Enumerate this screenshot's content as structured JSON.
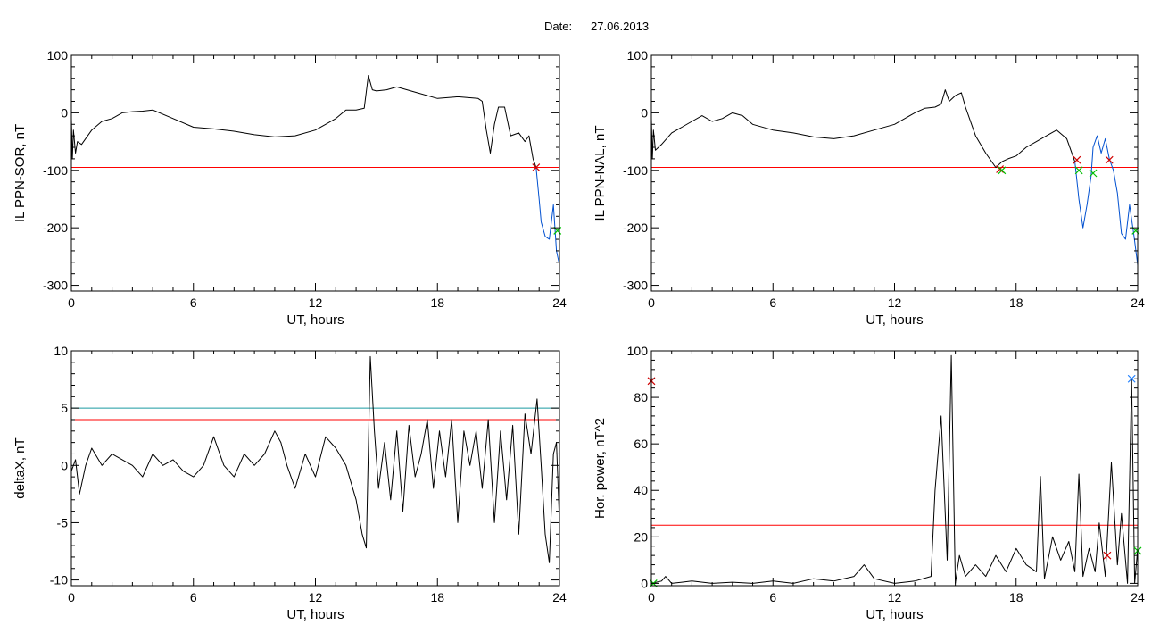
{
  "page": {
    "date_label": "Date:",
    "date_value": "27.06.2013"
  },
  "colors": {
    "data_line": "#000000",
    "threshold_red": "#ff0000",
    "threshold_cyan": "#1a9aa0",
    "below_threshold_blue": "#0050d0",
    "marker_red": "#d00000",
    "marker_green": "#00c000",
    "marker_blue": "#2080ff"
  },
  "chart_data": [
    {
      "id": "il-ppn-sor",
      "type": "line",
      "title": "",
      "xlabel": "UT, hours",
      "ylabel": "IL PPN-SOR, nT",
      "xlim": [
        0,
        24
      ],
      "ylim": [
        -310,
        100
      ],
      "xticks": [
        0,
        6,
        12,
        18,
        24
      ],
      "yticks": [
        100,
        0,
        -100,
        -200,
        -300
      ],
      "grid": false,
      "thresholds": [
        {
          "value": -95,
          "color": "red"
        }
      ],
      "series": [
        {
          "color": "black",
          "x": [
            0,
            0.05,
            0.1,
            0.2,
            0.3,
            0.5,
            1,
            1.5,
            2,
            2.5,
            3,
            3.5,
            4,
            5,
            6,
            7,
            8,
            9,
            10,
            11,
            12,
            12.5,
            13,
            13.5,
            14,
            14.4,
            14.6,
            14.8,
            15,
            15.5,
            16,
            17,
            18,
            19,
            20,
            20.2,
            20.4,
            20.6,
            20.8,
            21,
            21.3,
            21.6,
            22,
            22.3,
            22.5,
            22.7,
            22.85
          ],
          "y": [
            -10,
            -80,
            -30,
            -70,
            -50,
            -55,
            -30,
            -15,
            -10,
            0,
            2,
            3,
            5,
            -10,
            -25,
            -28,
            -32,
            -38,
            -42,
            -40,
            -30,
            -20,
            -10,
            5,
            5,
            8,
            65,
            40,
            38,
            40,
            45,
            35,
            25,
            28,
            25,
            20,
            -30,
            -70,
            -20,
            10,
            10,
            -40,
            -35,
            -50,
            -40,
            -80,
            -95
          ]
        },
        {
          "color": "blue",
          "x": [
            22.85,
            23,
            23.1,
            23.3,
            23.5,
            23.7,
            23.85,
            24
          ],
          "y": [
            -95,
            -150,
            -190,
            -215,
            -220,
            -160,
            -240,
            -265
          ]
        }
      ],
      "markers": [
        {
          "x": 22.85,
          "y": -95,
          "color": "red",
          "symbol": "x"
        },
        {
          "x": 23.9,
          "y": -205,
          "color": "green",
          "symbol": "x"
        }
      ]
    },
    {
      "id": "il-ppn-nal",
      "type": "line",
      "title": "",
      "xlabel": "UT, hours",
      "ylabel": "IL PPN-NAL, nT",
      "xlim": [
        0,
        24
      ],
      "ylim": [
        -310,
        100
      ],
      "xticks": [
        0,
        6,
        12,
        18,
        24
      ],
      "yticks": [
        100,
        0,
        -100,
        -200,
        -300
      ],
      "grid": false,
      "thresholds": [
        {
          "value": -95,
          "color": "red"
        }
      ],
      "series": [
        {
          "color": "black",
          "x": [
            0,
            0.05,
            0.1,
            0.2,
            0.5,
            1,
            1.5,
            2,
            2.5,
            3,
            3.5,
            4,
            4.5,
            5,
            6,
            7,
            8,
            9,
            10,
            11,
            12,
            13,
            13.5,
            14,
            14.3,
            14.5,
            14.7,
            15,
            15.3,
            15.5,
            15.8,
            16,
            16.5,
            17,
            17.3,
            17.6,
            18,
            18.5,
            19,
            19.5,
            20,
            20.5,
            20.9
          ],
          "y": [
            -10,
            -80,
            -30,
            -65,
            -55,
            -35,
            -25,
            -15,
            -5,
            -15,
            -10,
            0,
            -5,
            -20,
            -30,
            -35,
            -42,
            -45,
            -40,
            -30,
            -20,
            0,
            8,
            10,
            15,
            40,
            20,
            30,
            35,
            10,
            -20,
            -40,
            -70,
            -95,
            -85,
            -80,
            -75,
            -60,
            -50,
            -40,
            -30,
            -45,
            -85
          ]
        },
        {
          "color": "blue",
          "x": [
            20.9,
            21.1,
            21.3,
            21.5,
            21.7,
            21.8,
            22,
            22.2,
            22.4,
            22.6,
            22.8,
            23,
            23.2,
            23.4,
            23.6,
            23.8,
            24
          ],
          "y": [
            -85,
            -150,
            -200,
            -160,
            -110,
            -60,
            -40,
            -70,
            -45,
            -80,
            -100,
            -140,
            -210,
            -220,
            -160,
            -210,
            -265
          ]
        }
      ],
      "markers": [
        {
          "x": 17.2,
          "y": -98,
          "color": "red",
          "symbol": "x"
        },
        {
          "x": 17.3,
          "y": -100,
          "color": "green",
          "symbol": "x"
        },
        {
          "x": 21.0,
          "y": -82,
          "color": "red",
          "symbol": "x"
        },
        {
          "x": 21.1,
          "y": -100,
          "color": "green",
          "symbol": "x"
        },
        {
          "x": 21.8,
          "y": -105,
          "color": "green",
          "symbol": "x"
        },
        {
          "x": 22.6,
          "y": -82,
          "color": "red",
          "symbol": "x"
        },
        {
          "x": 23.9,
          "y": -205,
          "color": "green",
          "symbol": "x"
        }
      ]
    },
    {
      "id": "delta-x",
      "type": "line",
      "title": "",
      "xlabel": "UT, hours",
      "ylabel": "deltaX, nT",
      "xlim": [
        0,
        24
      ],
      "ylim": [
        -10.5,
        10
      ],
      "xticks": [
        0,
        6,
        12,
        18,
        24
      ],
      "yticks": [
        10,
        5,
        0,
        -5,
        -10
      ],
      "grid": false,
      "thresholds": [
        {
          "value": 5,
          "color": "cyan"
        },
        {
          "value": 4,
          "color": "red"
        }
      ],
      "series": [
        {
          "color": "black",
          "x": [
            0,
            0.2,
            0.4,
            0.7,
            1,
            1.5,
            2,
            2.5,
            3,
            3.5,
            4,
            4.5,
            5,
            5.5,
            6,
            6.5,
            7,
            7.5,
            8,
            8.5,
            9,
            9.5,
            10,
            10.3,
            10.6,
            11,
            11.5,
            12,
            12.5,
            13,
            13.5,
            14,
            14.3,
            14.5,
            14.7,
            14.9,
            15.1,
            15.4,
            15.7,
            16,
            16.3,
            16.6,
            16.9,
            17.2,
            17.5,
            17.8,
            18.1,
            18.4,
            18.7,
            19,
            19.3,
            19.6,
            19.9,
            20.2,
            20.5,
            20.8,
            21.1,
            21.4,
            21.7,
            22,
            22.3,
            22.6,
            22.9,
            23.1,
            23.3,
            23.5,
            23.7,
            23.85,
            24
          ],
          "y": [
            -0.5,
            0.5,
            -2.5,
            0,
            1.5,
            0,
            1,
            0.5,
            0,
            -1,
            1,
            0,
            0.5,
            -0.5,
            -1,
            0,
            2.5,
            0,
            -1,
            1,
            0,
            1,
            3,
            2,
            0,
            -2,
            1,
            -1,
            2.5,
            1.5,
            0,
            -3,
            -6,
            -7.2,
            9.5,
            3,
            -2,
            2,
            -3,
            3,
            -4,
            3.5,
            -1,
            1,
            4,
            -2,
            3,
            -1,
            4,
            -5,
            3,
            0,
            3,
            -2,
            4,
            -5,
            3,
            -3,
            3.5,
            -6,
            4.5,
            1,
            5.8,
            0,
            -6,
            -8.5,
            1,
            2,
            -5
          ]
        }
      ],
      "markers": []
    },
    {
      "id": "hor-power",
      "type": "line",
      "title": "",
      "xlabel": "UT, hours",
      "ylabel": "Hor. power, nT^2",
      "xlim": [
        0,
        24
      ],
      "ylim": [
        -1,
        100
      ],
      "xticks": [
        0,
        6,
        12,
        18,
        24
      ],
      "yticks": [
        100,
        80,
        60,
        40,
        20,
        0
      ],
      "grid": false,
      "thresholds": [
        {
          "value": 25,
          "color": "red"
        }
      ],
      "series": [
        {
          "color": "black",
          "x": [
            0,
            0.5,
            0.7,
            1,
            1.5,
            2,
            3,
            4,
            5,
            6,
            7,
            8,
            9,
            10,
            10.5,
            11,
            12,
            13,
            13.8,
            14,
            14.3,
            14.6,
            14.8,
            15,
            15.2,
            15.5,
            16,
            16.5,
            17,
            17.5,
            18,
            18.5,
            19,
            19.2,
            19.4,
            19.8,
            20.2,
            20.6,
            20.9,
            21.1,
            21.3,
            21.6,
            21.9,
            22.1,
            22.4,
            22.7,
            23,
            23.2,
            23.5,
            23.7,
            23.85,
            24
          ],
          "y": [
            0,
            1,
            3,
            0,
            0.5,
            1,
            0,
            0.5,
            0,
            1,
            0,
            2,
            1,
            3,
            8,
            2,
            0,
            1,
            3,
            40,
            72,
            10,
            98,
            0,
            12,
            3,
            8,
            3,
            12,
            5,
            15,
            8,
            5,
            46,
            2,
            20,
            10,
            18,
            5,
            47,
            3,
            15,
            5,
            26,
            3,
            52,
            8,
            30,
            0,
            88,
            0,
            15
          ]
        }
      ],
      "markers": [
        {
          "x": 0,
          "y": 87,
          "color": "red",
          "symbol": "x"
        },
        {
          "x": 0.1,
          "y": 0,
          "color": "green",
          "symbol": "x"
        },
        {
          "x": 22.5,
          "y": 12,
          "color": "red",
          "symbol": "x"
        },
        {
          "x": 23.7,
          "y": 88,
          "color": "blue",
          "symbol": "x"
        },
        {
          "x": 24,
          "y": 14,
          "color": "green",
          "symbol": "x"
        }
      ]
    }
  ]
}
